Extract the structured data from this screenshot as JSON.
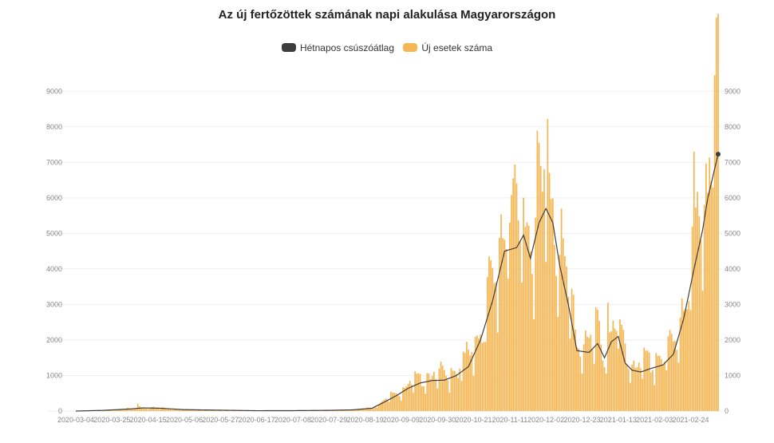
{
  "chart_data": {
    "type": "bar",
    "title": "Az új fertőzöttek számának napi alakulása Magyarországon",
    "xlabel": "",
    "ylabel": "",
    "ylim": [
      0,
      9500
    ],
    "y_ticks": [
      0,
      1000,
      2000,
      3000,
      4000,
      5000,
      6000,
      7000,
      8000,
      9000
    ],
    "x_range": [
      "2020-03-04",
      "2021-03-12"
    ],
    "x_tick_labels": [
      "2020-03-04",
      "2020-03-25",
      "2020-04-15",
      "2020-05-06",
      "2020-05-27",
      "2020-06-17",
      "2020-07-08",
      "2020-07-29",
      "2020-08-19",
      "2020-09-09",
      "2020-09-30",
      "2020-10-21",
      "2020-11-11",
      "2020-12-02",
      "2020-12-23",
      "2021-01-13",
      "2021-02-03",
      "2021-02-24"
    ],
    "grid": true,
    "legend_position": "top-center",
    "colors": {
      "line": "#3d3d3d",
      "bars": "#f5b653",
      "grid": "#efefef"
    },
    "series": [
      {
        "name": "Hétnapos csúszóátlag",
        "type": "line",
        "points": [
          [
            "2020-03-04",
            0
          ],
          [
            "2020-03-20",
            20
          ],
          [
            "2020-04-05",
            60
          ],
          [
            "2020-04-12",
            90
          ],
          [
            "2020-04-22",
            80
          ],
          [
            "2020-05-06",
            40
          ],
          [
            "2020-05-27",
            25
          ],
          [
            "2020-06-17",
            10
          ],
          [
            "2020-07-08",
            12
          ],
          [
            "2020-07-29",
            20
          ],
          [
            "2020-08-12",
            35
          ],
          [
            "2020-08-23",
            80
          ],
          [
            "2020-08-30",
            250
          ],
          [
            "2020-09-06",
            430
          ],
          [
            "2020-09-13",
            640
          ],
          [
            "2020-09-20",
            790
          ],
          [
            "2020-09-27",
            860
          ],
          [
            "2020-10-04",
            870
          ],
          [
            "2020-10-11",
            1000
          ],
          [
            "2020-10-18",
            1250
          ],
          [
            "2020-10-25",
            2000
          ],
          [
            "2020-11-01",
            3100
          ],
          [
            "2020-11-08",
            4500
          ],
          [
            "2020-11-15",
            4600
          ],
          [
            "2020-11-19",
            4950
          ],
          [
            "2020-11-23",
            4300
          ],
          [
            "2020-11-28",
            5300
          ],
          [
            "2020-12-02",
            5700
          ],
          [
            "2020-12-06",
            5300
          ],
          [
            "2020-12-10",
            4100
          ],
          [
            "2020-12-15",
            3000
          ],
          [
            "2020-12-20",
            1700
          ],
          [
            "2020-12-27",
            1650
          ],
          [
            "2021-01-01",
            1900
          ],
          [
            "2021-01-05",
            1500
          ],
          [
            "2021-01-09",
            1950
          ],
          [
            "2021-01-13",
            2100
          ],
          [
            "2021-01-17",
            1350
          ],
          [
            "2021-01-21",
            1150
          ],
          [
            "2021-01-26",
            1100
          ],
          [
            "2021-02-01",
            1200
          ],
          [
            "2021-02-08",
            1300
          ],
          [
            "2021-02-14",
            1600
          ],
          [
            "2021-02-20",
            2600
          ],
          [
            "2021-02-26",
            4000
          ],
          [
            "2021-03-03",
            5100
          ],
          [
            "2021-03-06",
            6000
          ],
          [
            "2021-03-12",
            7230
          ]
        ]
      },
      {
        "name": "Új esetek száma",
        "type": "bar",
        "peaks": [
          [
            "2020-04-09",
            210
          ],
          [
            "2020-10-17",
            1950
          ],
          [
            "2020-11-11",
            5300
          ],
          [
            "2020-11-13",
            6550
          ],
          [
            "2020-12-01",
            6800
          ],
          [
            "2020-12-04",
            6700
          ],
          [
            "2021-01-07",
            3050
          ],
          [
            "2021-02-26",
            7300
          ],
          [
            "2021-03-10",
            9450
          ]
        ]
      }
    ]
  }
}
